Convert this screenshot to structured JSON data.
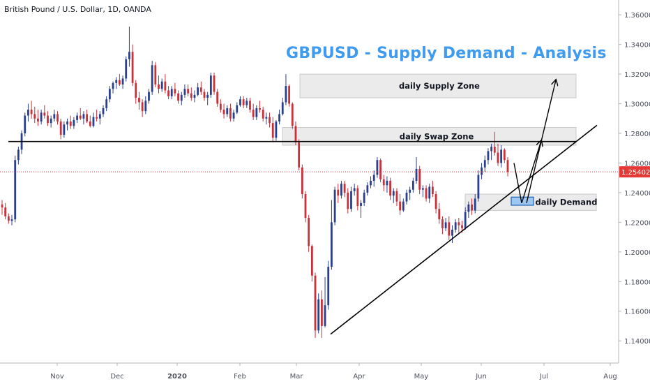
{
  "header": {
    "symbol": "British Pound / U.S. Dollar, 1D, OANDA",
    "title": "GBPUSD - Supply Demand - Analysis"
  },
  "chart_data": {
    "type": "candlestick",
    "ylim": [
      1.125,
      1.37
    ],
    "y_ticks": [
      "1.36000",
      "1.34000",
      "1.32000",
      "1.30000",
      "1.28000",
      "1.26000",
      "1.24000",
      "1.22000",
      "1.20000",
      "1.18000",
      "1.16000",
      "1.14000"
    ],
    "x_ticks": [
      "Nov",
      "Dec",
      "2020",
      "Feb",
      "Mar",
      "Apr",
      "May",
      "Jun",
      "Jul",
      "Aug"
    ],
    "last_price": "1.25402",
    "colors": {
      "up": "#2b3f8f",
      "down": "#c8303a",
      "axis_text": "#50535e",
      "price_line": "#e53935",
      "zone_fill": "#e8e8e8",
      "demand_fill": "#9cc8f3",
      "demand_stroke": "#1e5fb0",
      "title": "#3f9bf0"
    },
    "candles": [
      [
        1.232,
        1.235,
        1.225,
        1.23
      ],
      [
        1.23,
        1.233,
        1.222,
        1.224
      ],
      [
        1.224,
        1.226,
        1.219,
        1.221
      ],
      [
        1.221,
        1.225,
        1.218,
        1.222
      ],
      [
        1.222,
        1.265,
        1.22,
        1.262
      ],
      [
        1.262,
        1.271,
        1.259,
        1.269
      ],
      [
        1.269,
        1.282,
        1.266,
        1.28
      ],
      [
        1.28,
        1.294,
        1.278,
        1.292
      ],
      [
        1.292,
        1.3,
        1.288,
        1.296
      ],
      [
        1.296,
        1.302,
        1.29,
        1.293
      ],
      [
        1.293,
        1.298,
        1.287,
        1.29
      ],
      [
        1.29,
        1.296,
        1.285,
        1.288
      ],
      [
        1.288,
        1.296,
        1.286,
        1.294
      ],
      [
        1.294,
        1.299,
        1.29,
        1.292
      ],
      [
        1.292,
        1.295,
        1.285,
        1.287
      ],
      [
        1.287,
        1.292,
        1.284,
        1.29
      ],
      [
        1.29,
        1.296,
        1.288,
        1.293
      ],
      [
        1.293,
        1.295,
        1.286,
        1.288
      ],
      [
        1.288,
        1.29,
        1.276,
        1.279
      ],
      [
        1.279,
        1.288,
        1.277,
        1.286
      ],
      [
        1.286,
        1.29,
        1.282,
        1.288
      ],
      [
        1.288,
        1.292,
        1.283,
        1.285
      ],
      [
        1.285,
        1.291,
        1.283,
        1.289
      ],
      [
        1.289,
        1.294,
        1.287,
        1.292
      ],
      [
        1.292,
        1.297,
        1.289,
        1.29
      ],
      [
        1.29,
        1.295,
        1.286,
        1.293
      ],
      [
        1.293,
        1.296,
        1.287,
        1.288
      ],
      [
        1.288,
        1.292,
        1.284,
        1.285
      ],
      [
        1.285,
        1.294,
        1.284,
        1.291
      ],
      [
        1.291,
        1.296,
        1.288,
        1.29
      ],
      [
        1.29,
        1.295,
        1.286,
        1.293
      ],
      [
        1.293,
        1.299,
        1.291,
        1.297
      ],
      [
        1.297,
        1.305,
        1.295,
        1.303
      ],
      [
        1.303,
        1.312,
        1.301,
        1.31
      ],
      [
        1.31,
        1.315,
        1.307,
        1.314
      ],
      [
        1.314,
        1.318,
        1.31,
        1.316
      ],
      [
        1.316,
        1.32,
        1.312,
        1.313
      ],
      [
        1.313,
        1.319,
        1.31,
        1.317
      ],
      [
        1.317,
        1.332,
        1.315,
        1.33
      ],
      [
        1.33,
        1.352,
        1.325,
        1.335
      ],
      [
        1.335,
        1.34,
        1.312,
        1.314
      ],
      [
        1.314,
        1.316,
        1.3,
        1.304
      ],
      [
        1.304,
        1.308,
        1.296,
        1.301
      ],
      [
        1.301,
        1.303,
        1.291,
        1.295
      ],
      [
        1.295,
        1.305,
        1.293,
        1.302
      ],
      [
        1.302,
        1.31,
        1.3,
        1.308
      ],
      [
        1.308,
        1.329,
        1.306,
        1.326
      ],
      [
        1.326,
        1.328,
        1.311,
        1.313
      ],
      [
        1.313,
        1.319,
        1.307,
        1.31
      ],
      [
        1.31,
        1.317,
        1.308,
        1.315
      ],
      [
        1.315,
        1.32,
        1.307,
        1.309
      ],
      [
        1.309,
        1.312,
        1.303,
        1.305
      ],
      [
        1.305,
        1.312,
        1.303,
        1.31
      ],
      [
        1.31,
        1.314,
        1.305,
        1.307
      ],
      [
        1.307,
        1.309,
        1.3,
        1.302
      ],
      [
        1.302,
        1.308,
        1.299,
        1.306
      ],
      [
        1.306,
        1.313,
        1.304,
        1.31
      ],
      [
        1.31,
        1.313,
        1.305,
        1.307
      ],
      [
        1.307,
        1.311,
        1.302,
        1.304
      ],
      [
        1.304,
        1.309,
        1.301,
        1.306
      ],
      [
        1.306,
        1.314,
        1.305,
        1.311
      ],
      [
        1.311,
        1.315,
        1.306,
        1.308
      ],
      [
        1.308,
        1.31,
        1.302,
        1.304
      ],
      [
        1.304,
        1.308,
        1.299,
        1.306
      ],
      [
        1.306,
        1.321,
        1.304,
        1.319
      ],
      [
        1.319,
        1.321,
        1.306,
        1.308
      ],
      [
        1.308,
        1.31,
        1.298,
        1.3
      ],
      [
        1.3,
        1.303,
        1.294,
        1.296
      ],
      [
        1.296,
        1.3,
        1.29,
        1.293
      ],
      [
        1.293,
        1.299,
        1.291,
        1.297
      ],
      [
        1.297,
        1.3,
        1.288,
        1.29
      ],
      [
        1.29,
        1.296,
        1.288,
        1.294
      ],
      [
        1.294,
        1.301,
        1.293,
        1.299
      ],
      [
        1.299,
        1.305,
        1.298,
        1.303
      ],
      [
        1.303,
        1.305,
        1.297,
        1.299
      ],
      [
        1.299,
        1.304,
        1.297,
        1.302
      ],
      [
        1.302,
        1.304,
        1.294,
        1.296
      ],
      [
        1.296,
        1.3,
        1.289,
        1.291
      ],
      [
        1.291,
        1.299,
        1.289,
        1.297
      ],
      [
        1.297,
        1.302,
        1.294,
        1.296
      ],
      [
        1.296,
        1.298,
        1.288,
        1.29
      ],
      [
        1.29,
        1.294,
        1.286,
        1.291
      ],
      [
        1.291,
        1.294,
        1.284,
        1.287
      ],
      [
        1.287,
        1.291,
        1.274,
        1.277
      ],
      [
        1.277,
        1.289,
        1.275,
        1.288
      ],
      [
        1.288,
        1.296,
        1.286,
        1.293
      ],
      [
        1.293,
        1.304,
        1.292,
        1.301
      ],
      [
        1.301,
        1.32,
        1.299,
        1.312
      ],
      [
        1.312,
        1.313,
        1.298,
        1.3
      ],
      [
        1.3,
        1.301,
        1.283,
        1.285
      ],
      [
        1.285,
        1.288,
        1.272,
        1.274
      ],
      [
        1.274,
        1.276,
        1.255,
        1.257
      ],
      [
        1.257,
        1.259,
        1.236,
        1.239
      ],
      [
        1.239,
        1.241,
        1.22,
        1.223
      ],
      [
        1.223,
        1.225,
        1.2,
        1.204
      ],
      [
        1.204,
        1.205,
        1.18,
        1.184
      ],
      [
        1.184,
        1.186,
        1.142,
        1.147
      ],
      [
        1.147,
        1.172,
        1.145,
        1.168
      ],
      [
        1.168,
        1.174,
        1.142,
        1.15
      ],
      [
        1.15,
        1.183,
        1.149,
        1.164
      ],
      [
        1.164,
        1.194,
        1.161,
        1.19
      ],
      [
        1.19,
        1.235,
        1.188,
        1.22
      ],
      [
        1.22,
        1.244,
        1.218,
        1.242
      ],
      [
        1.242,
        1.246,
        1.233,
        1.238
      ],
      [
        1.238,
        1.248,
        1.236,
        1.246
      ],
      [
        1.246,
        1.248,
        1.237,
        1.24
      ],
      [
        1.24,
        1.243,
        1.226,
        1.229
      ],
      [
        1.229,
        1.244,
        1.227,
        1.241
      ],
      [
        1.241,
        1.246,
        1.238,
        1.243
      ],
      [
        1.243,
        1.245,
        1.228,
        1.231
      ],
      [
        1.231,
        1.235,
        1.223,
        1.233
      ],
      [
        1.233,
        1.242,
        1.231,
        1.24
      ],
      [
        1.24,
        1.247,
        1.238,
        1.245
      ],
      [
        1.245,
        1.251,
        1.243,
        1.248
      ],
      [
        1.248,
        1.255,
        1.244,
        1.252
      ],
      [
        1.252,
        1.264,
        1.25,
        1.262
      ],
      [
        1.262,
        1.263,
        1.247,
        1.249
      ],
      [
        1.249,
        1.252,
        1.241,
        1.245
      ],
      [
        1.245,
        1.251,
        1.24,
        1.248
      ],
      [
        1.248,
        1.25,
        1.235,
        1.238
      ],
      [
        1.238,
        1.243,
        1.233,
        1.241
      ],
      [
        1.241,
        1.243,
        1.231,
        1.234
      ],
      [
        1.234,
        1.239,
        1.225,
        1.228
      ],
      [
        1.228,
        1.236,
        1.227,
        1.234
      ],
      [
        1.234,
        1.242,
        1.232,
        1.24
      ],
      [
        1.24,
        1.244,
        1.235,
        1.242
      ],
      [
        1.242,
        1.25,
        1.24,
        1.248
      ],
      [
        1.248,
        1.264,
        1.246,
        1.256
      ],
      [
        1.256,
        1.258,
        1.239,
        1.242
      ],
      [
        1.242,
        1.245,
        1.237,
        1.243
      ],
      [
        1.243,
        1.245,
        1.234,
        1.236
      ],
      [
        1.236,
        1.246,
        1.233,
        1.244
      ],
      [
        1.244,
        1.248,
        1.237,
        1.239
      ],
      [
        1.239,
        1.241,
        1.226,
        1.229
      ],
      [
        1.229,
        1.233,
        1.219,
        1.222
      ],
      [
        1.222,
        1.224,
        1.212,
        1.216
      ],
      [
        1.216,
        1.223,
        1.214,
        1.22
      ],
      [
        1.22,
        1.224,
        1.208,
        1.211
      ],
      [
        1.211,
        1.218,
        1.206,
        1.215
      ],
      [
        1.215,
        1.222,
        1.213,
        1.22
      ],
      [
        1.22,
        1.223,
        1.213,
        1.218
      ],
      [
        1.218,
        1.221,
        1.213,
        1.216
      ],
      [
        1.216,
        1.23,
        1.215,
        1.227
      ],
      [
        1.227,
        1.234,
        1.223,
        1.232
      ],
      [
        1.232,
        1.236,
        1.225,
        1.228
      ],
      [
        1.228,
        1.239,
        1.226,
        1.236
      ],
      [
        1.236,
        1.255,
        1.234,
        1.252
      ],
      [
        1.252,
        1.26,
        1.249,
        1.257
      ],
      [
        1.257,
        1.265,
        1.254,
        1.262
      ],
      [
        1.262,
        1.27,
        1.259,
        1.268
      ],
      [
        1.268,
        1.273,
        1.262,
        1.271
      ],
      [
        1.271,
        1.281,
        1.265,
        1.267
      ],
      [
        1.267,
        1.273,
        1.258,
        1.26
      ],
      [
        1.26,
        1.272,
        1.257,
        1.269
      ],
      [
        1.269,
        1.27,
        1.26,
        1.262
      ],
      [
        1.262,
        1.264,
        1.251,
        1.254
      ]
    ]
  },
  "annotations": {
    "supply_zone": "daily Supply Zone",
    "swap_zone": "daily Swap Zone",
    "demand": "daily Demand"
  }
}
